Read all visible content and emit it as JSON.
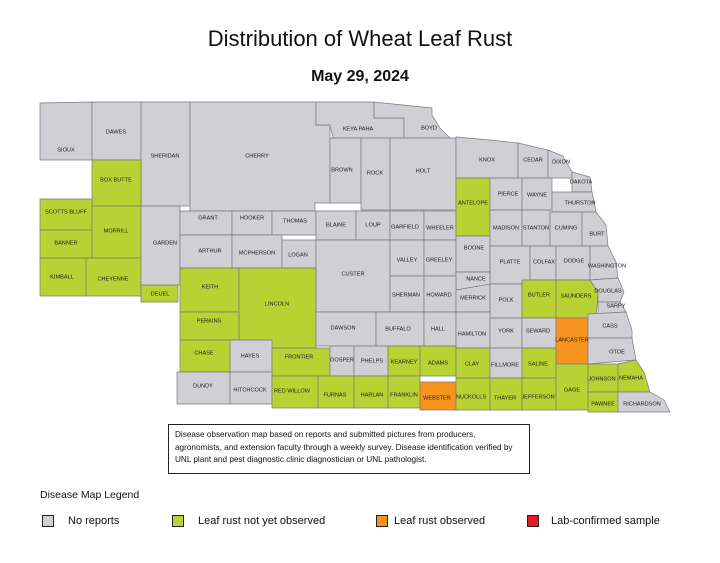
{
  "title": "Distribution of Wheat Leaf Rust",
  "subtitle": "May 29, 2024",
  "note": "Disease observation map based on reports and submitted pictures from producers, agronomists, and extension faculty through a weekly survey. Disease identification verified by UNL plant and pest diagnostic clinic diagnostician or UNL pathologist.",
  "legend": {
    "title": "Disease Map Legend",
    "items": [
      {
        "label": "No reports",
        "color": "#cfcfd4"
      },
      {
        "label": "Leaf rust not yet observed",
        "color": "#b7d232"
      },
      {
        "label": "Leaf rust observed",
        "color": "#f7941d"
      },
      {
        "label": "Lab-confirmed sample",
        "color": "#e31b23"
      }
    ]
  },
  "counties": [
    {
      "name": "SIOUX",
      "status": "no_reports"
    },
    {
      "name": "DAWES",
      "status": "no_reports"
    },
    {
      "name": "SHERIDAN",
      "status": "no_reports"
    },
    {
      "name": "CHERRY",
      "status": "no_reports"
    },
    {
      "name": "KEYA PAHA",
      "status": "no_reports"
    },
    {
      "name": "BOYD",
      "status": "no_reports"
    },
    {
      "name": "BROWN",
      "status": "no_reports"
    },
    {
      "name": "ROCK",
      "status": "no_reports"
    },
    {
      "name": "HOLT",
      "status": "no_reports"
    },
    {
      "name": "KNOX",
      "status": "no_reports"
    },
    {
      "name": "CEDAR",
      "status": "no_reports"
    },
    {
      "name": "DIXON",
      "status": "no_reports"
    },
    {
      "name": "DAKOTA",
      "status": "no_reports"
    },
    {
      "name": "BOX BUTTE",
      "status": "not_observed"
    },
    {
      "name": "SCOTTS BLUFF",
      "status": "not_observed"
    },
    {
      "name": "MORRILL",
      "status": "not_observed"
    },
    {
      "name": "BANNER",
      "status": "not_observed"
    },
    {
      "name": "KIMBALL",
      "status": "not_observed"
    },
    {
      "name": "CHEYENNE",
      "status": "not_observed"
    },
    {
      "name": "DEUEL",
      "status": "not_observed"
    },
    {
      "name": "GARDEN",
      "status": "no_reports"
    },
    {
      "name": "GRANT",
      "status": "no_reports"
    },
    {
      "name": "HOOKER",
      "status": "no_reports"
    },
    {
      "name": "THOMAS",
      "status": "no_reports"
    },
    {
      "name": "BLAINE",
      "status": "no_reports"
    },
    {
      "name": "LOUP",
      "status": "no_reports"
    },
    {
      "name": "GARFIELD",
      "status": "no_reports"
    },
    {
      "name": "WHEELER",
      "status": "no_reports"
    },
    {
      "name": "ANTELOPE",
      "status": "not_observed"
    },
    {
      "name": "PIERCE",
      "status": "no_reports"
    },
    {
      "name": "WAYNE",
      "status": "no_reports"
    },
    {
      "name": "THURSTON",
      "status": "no_reports"
    },
    {
      "name": "MADISON",
      "status": "no_reports"
    },
    {
      "name": "STANTON",
      "status": "no_reports"
    },
    {
      "name": "CUMING",
      "status": "no_reports"
    },
    {
      "name": "BURT",
      "status": "no_reports"
    },
    {
      "name": "ARTHUR",
      "status": "no_reports"
    },
    {
      "name": "MCPHERSON",
      "status": "no_reports"
    },
    {
      "name": "LOGAN",
      "status": "no_reports"
    },
    {
      "name": "CUSTER",
      "status": "no_reports"
    },
    {
      "name": "VALLEY",
      "status": "no_reports"
    },
    {
      "name": "GREELEY",
      "status": "no_reports"
    },
    {
      "name": "BOONE",
      "status": "no_reports"
    },
    {
      "name": "PLATTE",
      "status": "no_reports"
    },
    {
      "name": "COLFAX",
      "status": "no_reports"
    },
    {
      "name": "DODGE",
      "status": "no_reports"
    },
    {
      "name": "WASHINGTON",
      "status": "no_reports"
    },
    {
      "name": "NANCE",
      "status": "no_reports"
    },
    {
      "name": "KEITH",
      "status": "not_observed"
    },
    {
      "name": "LINCOLN",
      "status": "not_observed"
    },
    {
      "name": "SHERMAN",
      "status": "no_reports"
    },
    {
      "name": "HOWARD",
      "status": "no_reports"
    },
    {
      "name": "MERRICK",
      "status": "no_reports"
    },
    {
      "name": "POLK",
      "status": "no_reports"
    },
    {
      "name": "BUTLER",
      "status": "not_observed"
    },
    {
      "name": "SAUNDERS",
      "status": "not_observed"
    },
    {
      "name": "DOUGLAS",
      "status": "no_reports"
    },
    {
      "name": "SARPY",
      "status": "no_reports"
    },
    {
      "name": "PERKINS",
      "status": "not_observed"
    },
    {
      "name": "DAWSON",
      "status": "no_reports"
    },
    {
      "name": "BUFFALO",
      "status": "no_reports"
    },
    {
      "name": "HALL",
      "status": "no_reports"
    },
    {
      "name": "HAMILTON",
      "status": "no_reports"
    },
    {
      "name": "YORK",
      "status": "no_reports"
    },
    {
      "name": "SEWARD",
      "status": "no_reports"
    },
    {
      "name": "LANCASTER",
      "status": "observed"
    },
    {
      "name": "CASS",
      "status": "no_reports"
    },
    {
      "name": "OTOE",
      "status": "no_reports"
    },
    {
      "name": "CHASE",
      "status": "not_observed"
    },
    {
      "name": "HAYES",
      "status": "no_reports"
    },
    {
      "name": "FRONTIER",
      "status": "not_observed"
    },
    {
      "name": "GOSPER",
      "status": "no_reports"
    },
    {
      "name": "PHELPS",
      "status": "no_reports"
    },
    {
      "name": "KEARNEY",
      "status": "not_observed"
    },
    {
      "name": "ADAMS",
      "status": "not_observed"
    },
    {
      "name": "CLAY",
      "status": "not_observed"
    },
    {
      "name": "FILLMORE",
      "status": "no_reports"
    },
    {
      "name": "SALINE",
      "status": "not_observed"
    },
    {
      "name": "DUNDY",
      "status": "no_reports"
    },
    {
      "name": "HITCHCOCK",
      "status": "no_reports"
    },
    {
      "name": "RED WILLOW",
      "status": "not_observed"
    },
    {
      "name": "FURNAS",
      "status": "not_observed"
    },
    {
      "name": "HARLAN",
      "status": "not_observed"
    },
    {
      "name": "FRANKLIN",
      "status": "not_observed"
    },
    {
      "name": "WEBSTER",
      "status": "observed"
    },
    {
      "name": "NUCKOLLS",
      "status": "not_observed"
    },
    {
      "name": "THAYER",
      "status": "not_observed"
    },
    {
      "name": "JEFFERSON",
      "status": "not_observed"
    },
    {
      "name": "GAGE",
      "status": "not_observed"
    },
    {
      "name": "JOHNSON",
      "status": "not_observed"
    },
    {
      "name": "NEMAHA",
      "status": "not_observed"
    },
    {
      "name": "PAWNEE",
      "status": "not_observed"
    },
    {
      "name": "RICHARDSON",
      "status": "no_reports"
    }
  ]
}
